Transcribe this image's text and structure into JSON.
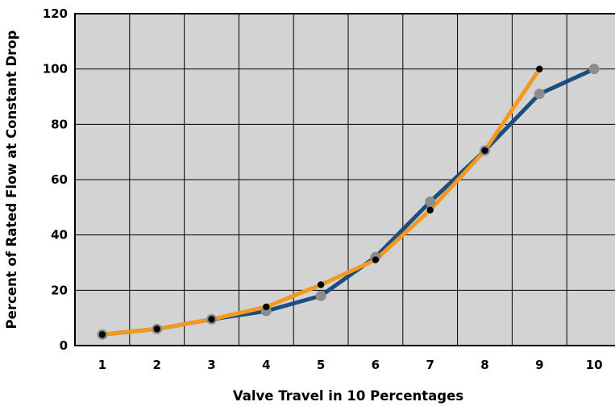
{
  "chart_data": {
    "type": "line",
    "title": "",
    "xlabel": "Valve Travel in 10 Percentages",
    "ylabel": "Percent of Rated Flow at Constant Drop",
    "x": [
      1,
      2,
      3,
      4,
      5,
      6,
      7,
      8,
      9,
      10
    ],
    "x_tick_labels": [
      "1",
      "2",
      "3",
      "4",
      "5",
      "6",
      "7",
      "8",
      "9",
      "10"
    ],
    "y_ticks": [
      0,
      20,
      40,
      60,
      80,
      100,
      120
    ],
    "y_tick_labels": [
      "0",
      "20",
      "40",
      "60",
      "80",
      "100",
      "120"
    ],
    "xlim": [
      0.5,
      10.5
    ],
    "ylim": [
      0,
      120
    ],
    "grid": true,
    "plot_background": "#d3d3d3",
    "series": [
      {
        "x": [
          1,
          2,
          3,
          4,
          5,
          6,
          7,
          8,
          9,
          10
        ],
        "values": [
          4,
          6,
          9.5,
          12.5,
          18,
          32,
          52,
          70.5,
          91,
          100
        ],
        "line_color": "#1b4d7e",
        "marker_color": "#8c8c8c"
      },
      {
        "x": [
          1,
          2,
          3,
          4,
          5,
          6,
          7,
          8,
          9
        ],
        "values": [
          4,
          6,
          9.5,
          14,
          22,
          31,
          49,
          70.5,
          100
        ],
        "line_color": "#f39a1e",
        "marker_color": "#000000"
      }
    ]
  }
}
